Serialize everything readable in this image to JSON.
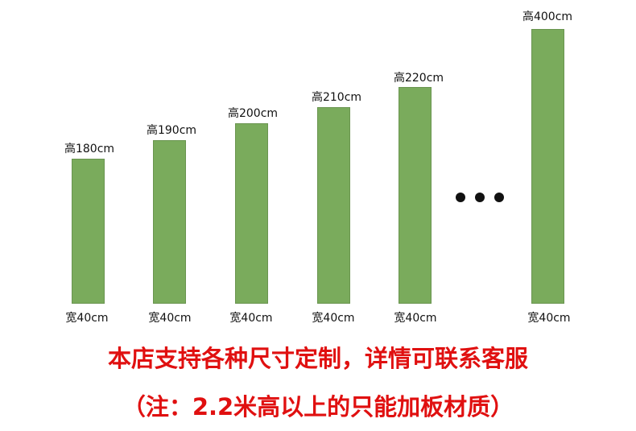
{
  "products": [
    {
      "height_label": "高180cm",
      "width_label": "宽40cm",
      "height_cm": 180
    },
    {
      "height_label": "高190cm",
      "width_label": "宽40cm",
      "height_cm": 190
    },
    {
      "height_label": "高200cm",
      "width_label": "宽40cm",
      "height_cm": 200
    },
    {
      "height_label": "高210cm",
      "width_label": "宽40cm",
      "height_cm": 210
    },
    {
      "height_label": "高220cm",
      "width_label": "宽40cm",
      "height_cm": 220
    },
    {
      "height_label": "高400cm",
      "width_label": "宽40cm",
      "height_cm": 400
    }
  ],
  "colors": {
    "bar": "#7aab5c",
    "note": "#e01010",
    "text": "#111111"
  },
  "notes": {
    "line1": "本店支持各种尺寸定制，详情可联系客服",
    "line2": "（注：2.2米高以上的只能加板材质）"
  }
}
